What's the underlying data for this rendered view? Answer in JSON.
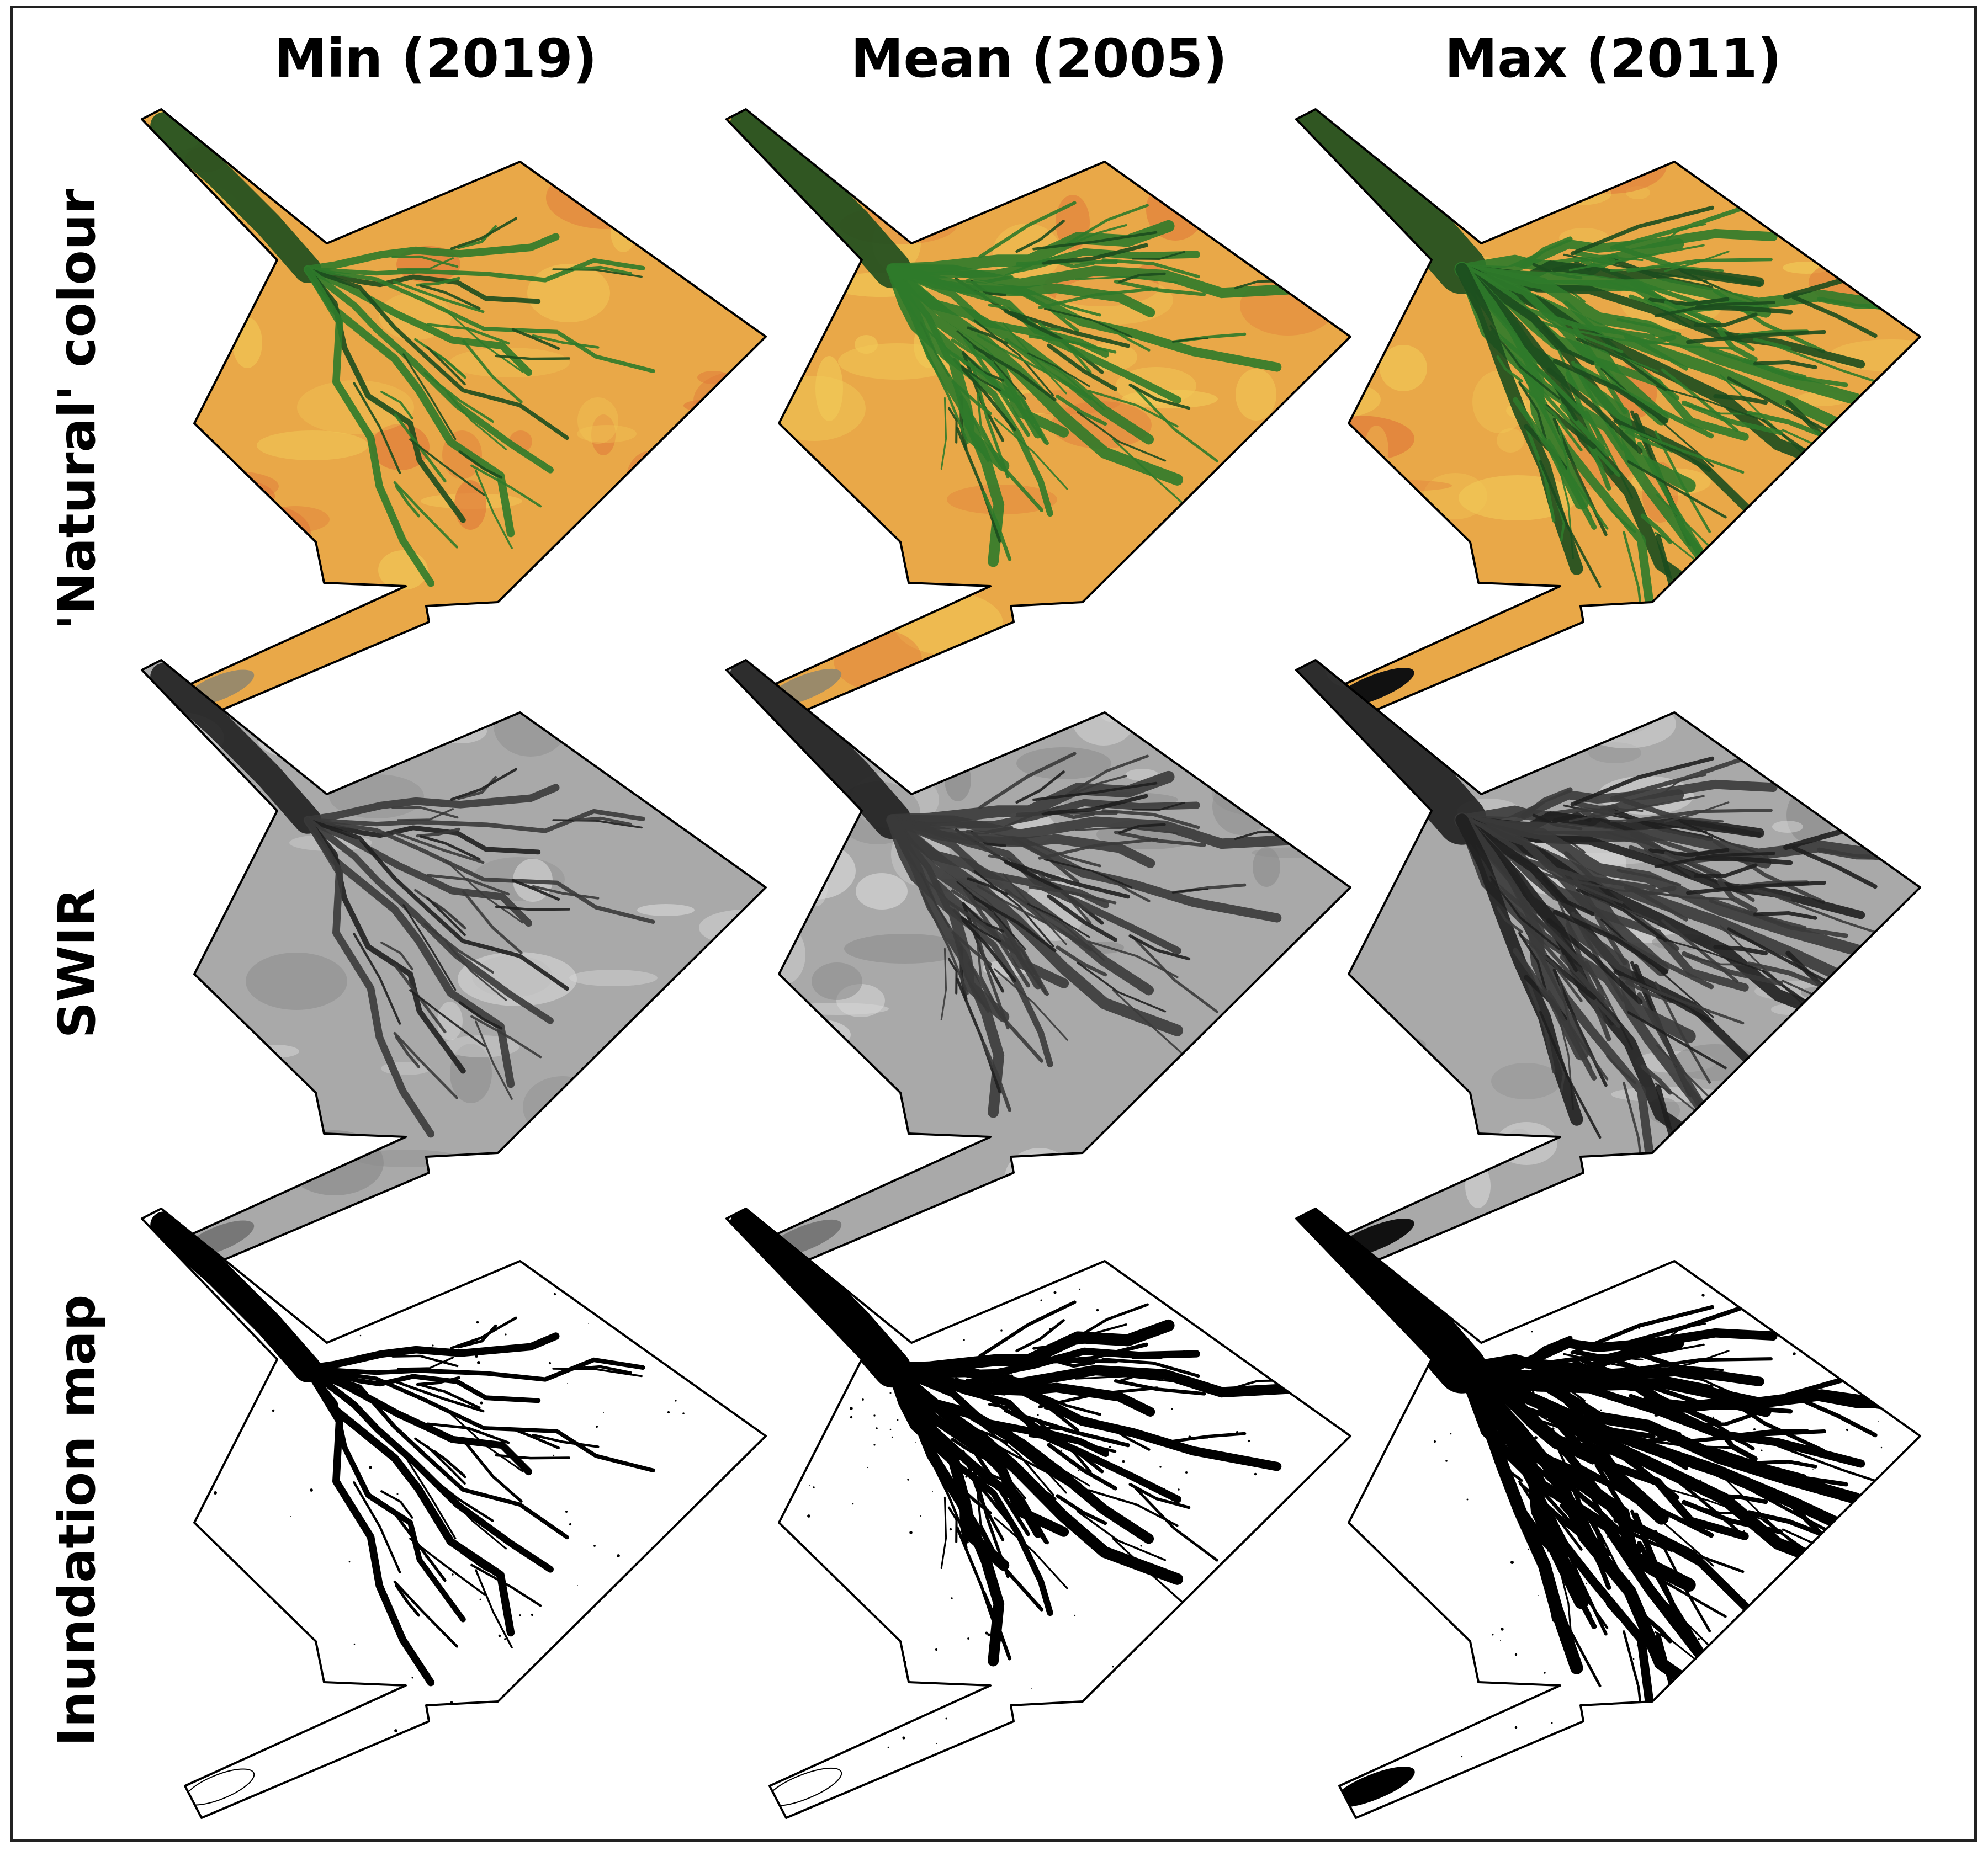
{
  "columns": [
    {
      "label": "Min (2019)",
      "inundation_level": 0.28
    },
    {
      "label": "Mean (2005)",
      "inundation_level": 0.55
    },
    {
      "label": "Max (2011)",
      "inundation_level": 0.85
    }
  ],
  "rows": [
    {
      "label": "'Natural' colour",
      "style": "natural"
    },
    {
      "label": "SWIR",
      "style": "swir"
    },
    {
      "label": "Inundation map",
      "style": "inundation"
    }
  ],
  "colors": {
    "natural_land": "#e9a848",
    "natural_land_light": "#f1c957",
    "natural_land_red": "#e07a3a",
    "natural_wet": "#2f7a2a",
    "natural_wet_dark": "#1c4d1e",
    "swir_land": "#a9a9a9",
    "swir_land_light": "#d6d6d6",
    "swir_wet": "#3a3a3a",
    "inundation_land": "#ffffff",
    "inundation_wet": "#000000",
    "outline": "#000000"
  }
}
